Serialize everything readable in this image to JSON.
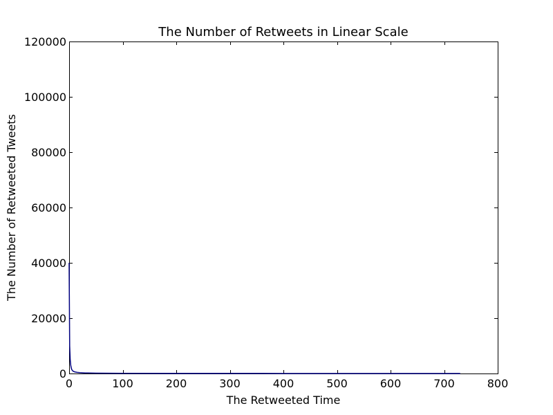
{
  "chart_data": {
    "type": "line",
    "title": "The Number of Retweets in Linear Scale",
    "xlabel": "The Retweeted Time",
    "ylabel": "The Number of Retweeted Tweets",
    "xlim": [
      0,
      800
    ],
    "ylim": [
      0,
      120000
    ],
    "xticks": [
      0,
      100,
      200,
      300,
      400,
      500,
      600,
      700,
      800
    ],
    "yticks": [
      0,
      20000,
      40000,
      60000,
      80000,
      100000,
      120000
    ],
    "grid": false,
    "series": [
      {
        "color": "#000080",
        "x": [
          0,
          1,
          2,
          3,
          4,
          5,
          7,
          10,
          15,
          20,
          30,
          50,
          100,
          200,
          300,
          400,
          500,
          600,
          700,
          730
        ],
        "y": [
          40000,
          10000,
          5000,
          3000,
          2000,
          1400,
          900,
          600,
          400,
          300,
          200,
          120,
          60,
          30,
          20,
          15,
          10,
          8,
          5,
          3
        ]
      }
    ]
  }
}
